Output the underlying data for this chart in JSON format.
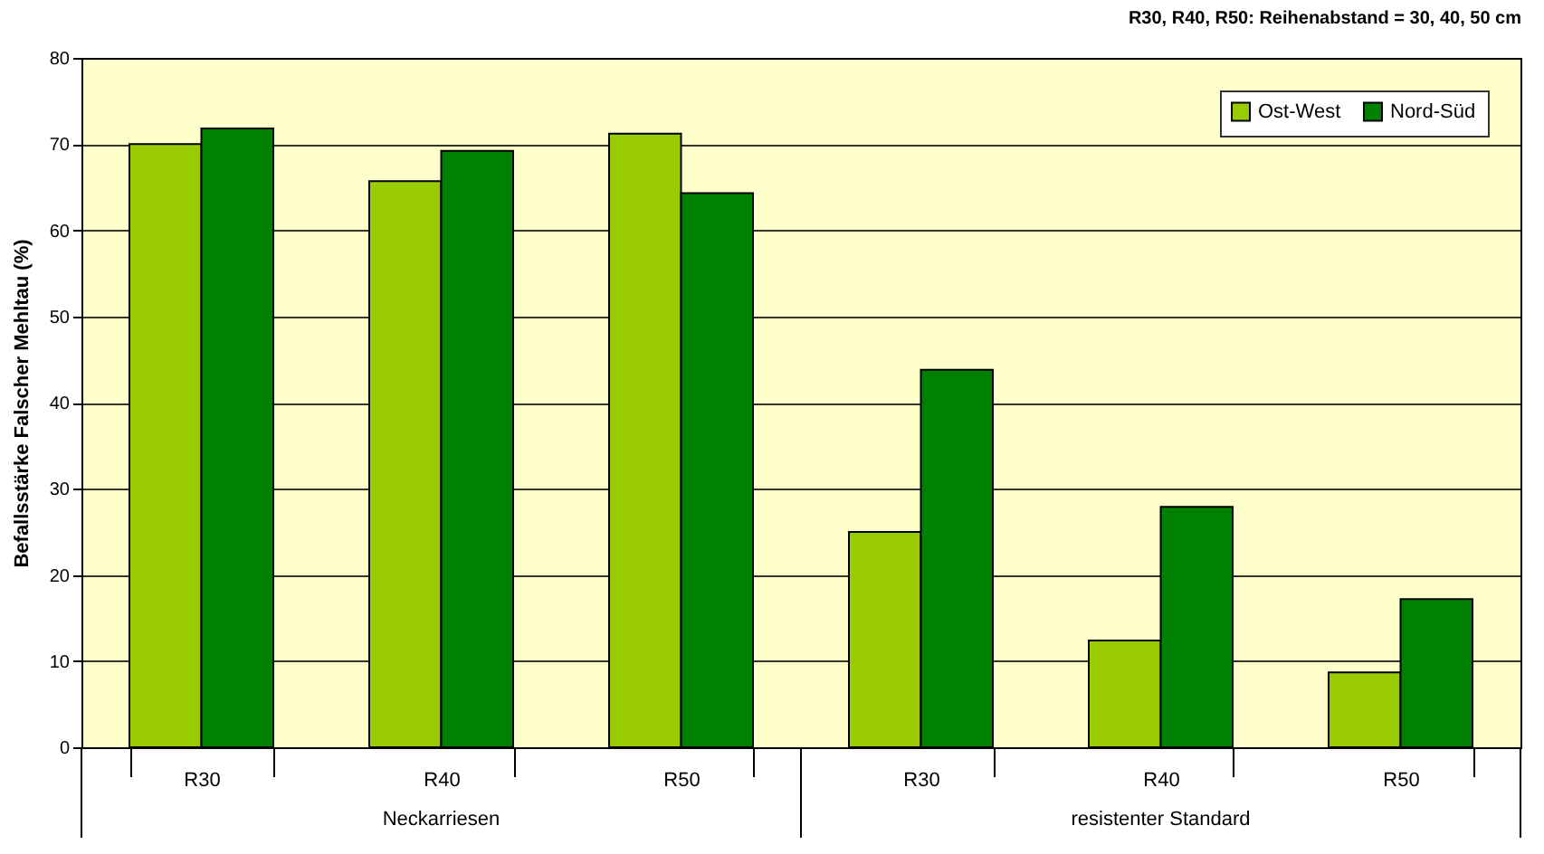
{
  "chart_data": {
    "type": "bar",
    "title": "R30, R40, R50: Reihenabstand = 30, 40, 50 cm",
    "ylabel": "Befallsstärke Falscher Mehltau (%)",
    "categories": [
      "R30",
      "R40",
      "R50",
      "R30",
      "R40",
      "R50"
    ],
    "series": [
      {
        "name": "Ost-West",
        "color": "#99cc00",
        "values": [
          70,
          65.7,
          71.2,
          25,
          12.4,
          8.7
        ]
      },
      {
        "name": "Nord-Süd",
        "color": "#008000",
        "values": [
          71.8,
          69.2,
          64.3,
          43.8,
          27.9,
          17.2
        ]
      }
    ],
    "annotations": [
      "Neckarriesen",
      "resistenter Standard"
    ],
    "ylim": [
      0,
      80
    ],
    "yticks": [
      0,
      10,
      20,
      30,
      40,
      50,
      60,
      70,
      80
    ],
    "grid": "y",
    "legend": "top right"
  }
}
